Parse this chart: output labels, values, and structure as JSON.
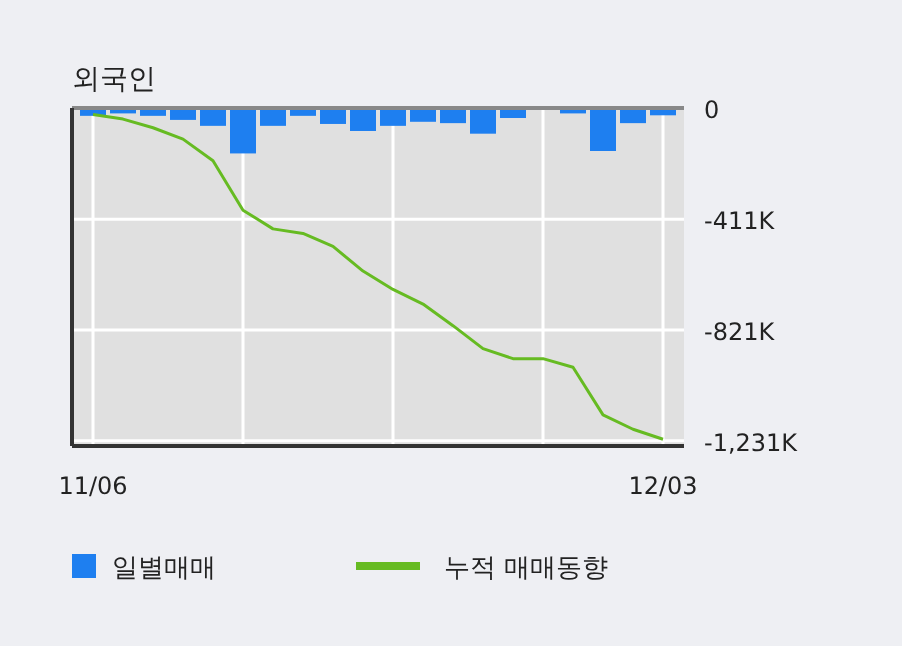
{
  "chart_data": {
    "type": "bar",
    "title": "외국인",
    "categories": [
      "11/06",
      null,
      null,
      null,
      null,
      null,
      null,
      null,
      null,
      null,
      null,
      null,
      null,
      null,
      null,
      null,
      null,
      null,
      null,
      "12/03"
    ],
    "series": [
      {
        "name": "일별매매",
        "color": "#1e7ff0",
        "values": [
          -29000,
          -20000,
          -29000,
          -44000,
          -66000,
          -168000,
          -66000,
          -29000,
          -59000,
          -85000,
          -66000,
          -51000,
          -56000,
          -95000,
          -37000,
          0,
          -20000,
          -159000,
          -56000,
          -27000
        ]
      },
      {
        "name": "누적 매매동향",
        "type": "line",
        "color": "#66bb22",
        "values": [
          -24000,
          -41000,
          -73000,
          -115000,
          -195000,
          -378000,
          -447000,
          -464000,
          -512000,
          -603000,
          -671000,
          -725000,
          -805000,
          -890000,
          -927000,
          -927000,
          -959000,
          -1135000,
          -1188000,
          -1225000
        ]
      }
    ],
    "ylim": [
      -1250000,
      0
    ],
    "yticks": [
      0,
      {
        "value": -411000,
        "label": "-411K"
      },
      {
        "value": -821000,
        "label": "-821K"
      },
      {
        "value": -1231000,
        "label": "-1,231K"
      }
    ],
    "grid": true,
    "legend": "bottom"
  }
}
